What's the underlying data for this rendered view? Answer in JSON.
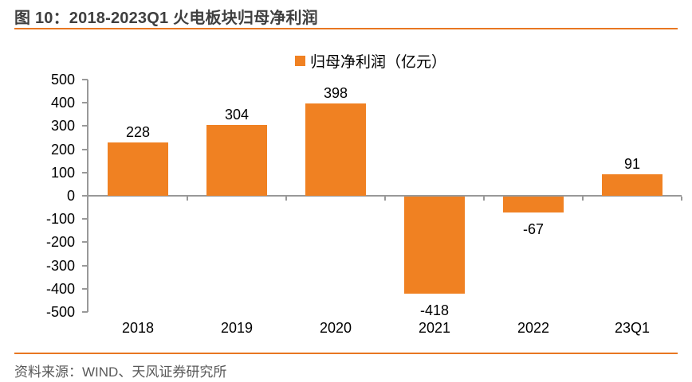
{
  "figure": {
    "title": "图 10：2018-2023Q1 火电板块归母净利润",
    "source": "资料来源：WIND、天风证券研究所"
  },
  "legend": {
    "label": "归母净利润（亿元）"
  },
  "colors": {
    "bar": "#F08122",
    "rule": "#E87722",
    "axis": "#999999",
    "title_text": "#3F3F3F",
    "source_text": "#595959",
    "label_text": "#000000"
  },
  "chart_data": {
    "type": "bar",
    "title": "图 10：2018-2023Q1 火电板块归母净利润",
    "categories": [
      "2018",
      "2019",
      "2020",
      "2021",
      "2022",
      "23Q1"
    ],
    "values": [
      228,
      304,
      398,
      -418,
      -67,
      91
    ],
    "series_name": "归母净利润（亿元）",
    "legend": [
      "归母净利润（亿元）"
    ],
    "legend_position": "top-center",
    "xlabel": "",
    "ylabel": "",
    "ylim": [
      -500,
      500
    ],
    "yticks": [
      500,
      400,
      300,
      200,
      100,
      0,
      -100,
      -200,
      -300,
      -400,
      -500
    ],
    "grid": false,
    "data_labels": true,
    "source": "资料来源：WIND、天风证券研究所"
  }
}
